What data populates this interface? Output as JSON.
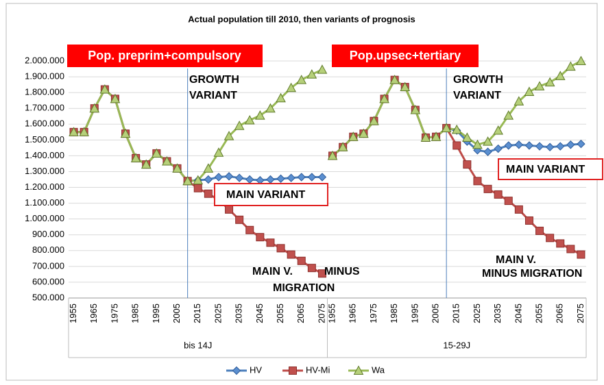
{
  "chart_data": {
    "type": "line",
    "title": "Actual population till 2010, then variants of prognosis",
    "groups": [
      "bis 14J",
      "15-29J"
    ],
    "categories": [
      "1955",
      null,
      "1965",
      null,
      "1975",
      null,
      "1985",
      null,
      "1995",
      null,
      "2005",
      null,
      "2015",
      null,
      "2025",
      null,
      "2035",
      null,
      "2045",
      null,
      "2055",
      null,
      "2065",
      null,
      "2075",
      "1955",
      null,
      "1965",
      null,
      "1975",
      null,
      "1985",
      null,
      "1995",
      null,
      "2005",
      null,
      "2015",
      null,
      "2025",
      null,
      "2035",
      null,
      "2045",
      null,
      "2055",
      null,
      "2065",
      null,
      "2075"
    ],
    "series": [
      {
        "name": "HV",
        "color": "#4a7ebb",
        "marker": "diamond",
        "values": [
          1550000,
          1550000,
          1700000,
          1820000,
          1760000,
          1540000,
          1385000,
          1345000,
          1415000,
          1365000,
          1320000,
          1240000,
          1245000,
          1250000,
          1265000,
          1270000,
          1260000,
          1250000,
          1245000,
          1250000,
          1255000,
          1260000,
          1265000,
          1265000,
          1265000,
          1400000,
          1455000,
          1520000,
          1540000,
          1620000,
          1760000,
          1880000,
          1835000,
          1690000,
          1515000,
          1520000,
          1575000,
          1560000,
          1490000,
          1435000,
          1425000,
          1445000,
          1465000,
          1470000,
          1465000,
          1460000,
          1455000,
          1460000,
          1470000,
          1475000
        ]
      },
      {
        "name": "HV-Mi",
        "color": "#be4b48",
        "marker": "square",
        "values": [
          1550000,
          1550000,
          1700000,
          1820000,
          1760000,
          1540000,
          1385000,
          1345000,
          1415000,
          1365000,
          1320000,
          1240000,
          1195000,
          1160000,
          1120000,
          1060000,
          995000,
          930000,
          885000,
          850000,
          815000,
          775000,
          735000,
          690000,
          655000,
          1400000,
          1455000,
          1520000,
          1540000,
          1620000,
          1760000,
          1880000,
          1835000,
          1690000,
          1515000,
          1520000,
          1575000,
          1465000,
          1345000,
          1240000,
          1190000,
          1155000,
          1115000,
          1060000,
          990000,
          925000,
          880000,
          845000,
          810000,
          775000
        ]
      },
      {
        "name": "Wa",
        "color": "#98b954",
        "marker": "triangle",
        "values": [
          1550000,
          1550000,
          1700000,
          1820000,
          1760000,
          1540000,
          1385000,
          1345000,
          1415000,
          1365000,
          1320000,
          1240000,
          1245000,
          1320000,
          1420000,
          1525000,
          1590000,
          1625000,
          1655000,
          1700000,
          1765000,
          1830000,
          1880000,
          1915000,
          1945000,
          1400000,
          1455000,
          1520000,
          1540000,
          1620000,
          1760000,
          1880000,
          1835000,
          1690000,
          1515000,
          1520000,
          1575000,
          1565000,
          1515000,
          1470000,
          1490000,
          1560000,
          1655000,
          1745000,
          1805000,
          1840000,
          1865000,
          1905000,
          1965000,
          2000000
        ]
      }
    ],
    "ylim": [
      500000,
      2000000
    ],
    "yticks": [
      {
        "value": 500000,
        "label": "500.000"
      },
      {
        "value": 600000,
        "label": "600.000"
      },
      {
        "value": 700000,
        "label": "700.000"
      },
      {
        "value": 800000,
        "label": "800.000"
      },
      {
        "value": 900000,
        "label": "900.000"
      },
      {
        "value": 1000000,
        "label": "1.000.000"
      },
      {
        "value": 1100000,
        "label": "1.100.000"
      },
      {
        "value": 1200000,
        "label": "1.200.000"
      },
      {
        "value": 1300000,
        "label": "1.300.000"
      },
      {
        "value": 1400000,
        "label": "1.400.000"
      },
      {
        "value": 1500000,
        "label": "1.500.000"
      },
      {
        "value": 1600000,
        "label": "1.600.000"
      },
      {
        "value": 1700000,
        "label": "1.700.000"
      },
      {
        "value": 1800000,
        "label": "1.800.000"
      },
      {
        "value": 1900000,
        "label": "1.900.000"
      },
      {
        "value": 2000000,
        "label": "2.000.000"
      }
    ],
    "grid": true,
    "legend": "bottom",
    "annotations": [
      {
        "lines": [
          "Pop. preprim+compulsory"
        ]
      },
      {
        "lines": [
          "Pop.upsec+tertiary"
        ]
      },
      {
        "lines": [
          "GROWTH",
          "VARIANT"
        ]
      },
      {
        "lines": [
          "GROWTH",
          "VARIANT"
        ]
      },
      {
        "lines": [
          "MAIN VARIANT"
        ]
      },
      {
        "lines": [
          "MAIN VARIANT"
        ]
      },
      {
        "lines": [
          "MAIN V.",
          "MINUS",
          "MIGRATION"
        ]
      },
      {
        "lines": [
          "MAIN V.",
          "MINUS MIGRATION"
        ]
      }
    ]
  }
}
